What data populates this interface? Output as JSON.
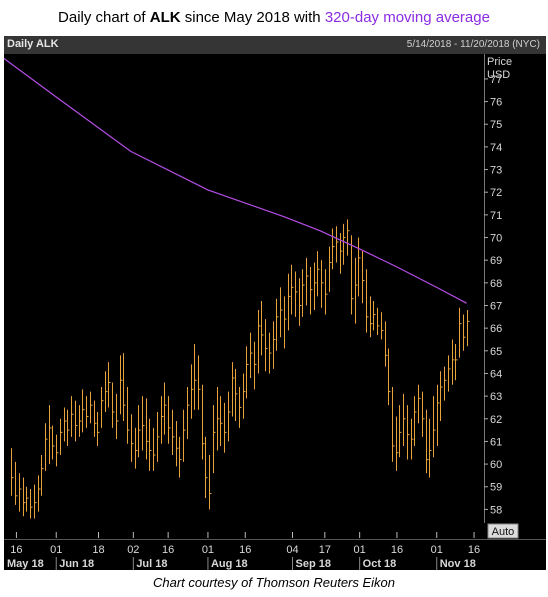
{
  "title": {
    "prefix": "Daily chart of ",
    "ticker": "ALK",
    "middle": " since May 2018 with ",
    "highlight": "320-day moving average"
  },
  "header": {
    "name": "Daily ALK",
    "range": "5/14/2018 - 11/20/2018 (NYC)"
  },
  "caption": "Chart courtesy of Thomson Reuters Eikon",
  "colors": {
    "price": "#e8a23c",
    "ma": "#b54ee6",
    "bg": "#000000",
    "axis": "#d8d8d8",
    "title_highlight": "#8b2be2"
  },
  "chart_data": {
    "type": "ohlc",
    "ylabel_lines": [
      "Price",
      "USD"
    ],
    "ylim": [
      57.4,
      78.1
    ],
    "yticks": [
      58,
      59,
      60,
      61,
      62,
      63,
      64,
      65,
      66,
      67,
      68,
      69,
      70,
      71,
      72,
      73,
      74,
      75,
      76,
      77
    ],
    "x_domain": [
      "2018-05-11",
      "2018-11-20"
    ],
    "xtick_days": [
      {
        "label": "16",
        "date": "2018-05-16"
      },
      {
        "label": "01",
        "date": "2018-06-01"
      },
      {
        "label": "18",
        "date": "2018-06-18"
      },
      {
        "label": "02",
        "date": "2018-07-02"
      },
      {
        "label": "16",
        "date": "2018-07-16"
      },
      {
        "label": "01",
        "date": "2018-08-01"
      },
      {
        "label": "16",
        "date": "2018-08-16"
      },
      {
        "label": "04",
        "date": "2018-09-04"
      },
      {
        "label": "17",
        "date": "2018-09-17"
      },
      {
        "label": "01",
        "date": "2018-10-01"
      },
      {
        "label": "16",
        "date": "2018-10-16"
      },
      {
        "label": "01",
        "date": "2018-11-01"
      },
      {
        "label": "16",
        "date": "2018-11-16"
      }
    ],
    "xtick_months": [
      {
        "label": "May 18",
        "date": "2018-05-11"
      },
      {
        "label": "Jun 18",
        "date": "2018-06-01"
      },
      {
        "label": "Jul 18",
        "date": "2018-07-02"
      },
      {
        "label": "Aug 18",
        "date": "2018-08-01"
      },
      {
        "label": "Sep 18",
        "date": "2018-09-04"
      },
      {
        "label": "Oct 18",
        "date": "2018-10-01"
      },
      {
        "label": "Nov 18",
        "date": "2018-11-01"
      }
    ],
    "auto_button": "Auto",
    "bar_dates": [
      "2018-05-14",
      "2018-11-13"
    ],
    "bars": [
      {
        "h": 60.7,
        "l": 58.6,
        "c": 59.4
      },
      {
        "h": 60.1,
        "l": 58.2,
        "c": 58.6
      },
      {
        "h": 59.6,
        "l": 57.9,
        "c": 58.9
      },
      {
        "h": 59.4,
        "l": 57.7,
        "c": 58.3
      },
      {
        "h": 59.0,
        "l": 57.9,
        "c": 58.5
      },
      {
        "h": 58.9,
        "l": 57.6,
        "c": 58.1
      },
      {
        "h": 59.1,
        "l": 57.6,
        "c": 58.3
      },
      {
        "h": 59.5,
        "l": 57.9,
        "c": 58.9
      },
      {
        "h": 60.4,
        "l": 58.6,
        "c": 59.8
      },
      {
        "h": 61.8,
        "l": 59.7,
        "c": 61.1
      },
      {
        "h": 62.6,
        "l": 60.0,
        "c": 61.6
      },
      {
        "h": 61.7,
        "l": 60.2,
        "c": 60.8
      },
      {
        "h": 61.3,
        "l": 59.9,
        "c": 60.5
      },
      {
        "h": 62.0,
        "l": 60.4,
        "c": 61.4
      },
      {
        "h": 62.5,
        "l": 61.0,
        "c": 61.9
      },
      {
        "h": 62.4,
        "l": 60.8,
        "c": 61.5
      },
      {
        "h": 63.0,
        "l": 61.2,
        "c": 62.2
      },
      {
        "h": 62.8,
        "l": 61.0,
        "c": 61.7
      },
      {
        "h": 62.6,
        "l": 61.2,
        "c": 61.9
      },
      {
        "h": 63.3,
        "l": 61.4,
        "c": 62.4
      },
      {
        "h": 63.0,
        "l": 61.6,
        "c": 62.1
      },
      {
        "h": 63.2,
        "l": 61.8,
        "c": 62.6
      },
      {
        "h": 62.8,
        "l": 61.2,
        "c": 61.8
      },
      {
        "h": 62.3,
        "l": 60.8,
        "c": 61.4
      },
      {
        "h": 63.4,
        "l": 61.6,
        "c": 62.8
      },
      {
        "h": 64.1,
        "l": 62.3,
        "c": 63.2
      },
      {
        "h": 64.5,
        "l": 62.5,
        "c": 63.6
      },
      {
        "h": 63.6,
        "l": 61.6,
        "c": 62.3
      },
      {
        "h": 63.1,
        "l": 61.1,
        "c": 61.9
      },
      {
        "h": 64.8,
        "l": 62.2,
        "c": 63.7
      },
      {
        "h": 64.9,
        "l": 61.9,
        "c": 62.6
      },
      {
        "h": 63.4,
        "l": 60.9,
        "c": 61.5
      },
      {
        "h": 62.2,
        "l": 60.1,
        "c": 60.9
      },
      {
        "h": 61.6,
        "l": 59.8,
        "c": 60.6
      },
      {
        "h": 62.6,
        "l": 60.3,
        "c": 61.5
      },
      {
        "h": 63.0,
        "l": 60.6,
        "c": 61.7
      },
      {
        "h": 62.9,
        "l": 60.2,
        "c": 61.0
      },
      {
        "h": 62.0,
        "l": 59.7,
        "c": 60.6
      },
      {
        "h": 61.6,
        "l": 59.7,
        "c": 60.4
      },
      {
        "h": 62.3,
        "l": 60.1,
        "c": 61.2
      },
      {
        "h": 63.0,
        "l": 60.9,
        "c": 62.1
      },
      {
        "h": 63.6,
        "l": 61.3,
        "c": 62.6
      },
      {
        "h": 63.0,
        "l": 60.9,
        "c": 61.6
      },
      {
        "h": 62.4,
        "l": 60.4,
        "c": 61.2
      },
      {
        "h": 61.9,
        "l": 59.9,
        "c": 60.7
      },
      {
        "h": 61.2,
        "l": 59.4,
        "c": 60.2
      },
      {
        "h": 62.4,
        "l": 60.1,
        "c": 61.5
      },
      {
        "h": 63.4,
        "l": 61.1,
        "c": 62.6
      },
      {
        "h": 64.4,
        "l": 62.0,
        "c": 63.3
      },
      {
        "h": 65.3,
        "l": 62.4,
        "c": 63.7
      },
      {
        "h": 64.8,
        "l": 62.4,
        "c": 63.3
      },
      {
        "h": 63.5,
        "l": 60.2,
        "c": 60.9
      },
      {
        "h": 61.2,
        "l": 58.5,
        "c": 59.4
      },
      {
        "h": 60.4,
        "l": 58.0,
        "c": 58.7
      },
      {
        "h": 62.6,
        "l": 59.6,
        "c": 61.4
      },
      {
        "h": 63.4,
        "l": 60.6,
        "c": 62.0
      },
      {
        "h": 63.0,
        "l": 60.8,
        "c": 61.8
      },
      {
        "h": 62.7,
        "l": 60.5,
        "c": 61.4
      },
      {
        "h": 63.2,
        "l": 61.0,
        "c": 62.3
      },
      {
        "h": 64.5,
        "l": 62.1,
        "c": 63.8
      },
      {
        "h": 64.2,
        "l": 61.9,
        "c": 63.1
      },
      {
        "h": 63.4,
        "l": 61.6,
        "c": 62.5
      },
      {
        "h": 64.0,
        "l": 62.0,
        "c": 63.2
      },
      {
        "h": 65.2,
        "l": 62.9,
        "c": 64.4
      },
      {
        "h": 65.8,
        "l": 63.8,
        "c": 64.9
      },
      {
        "h": 65.4,
        "l": 63.3,
        "c": 64.4
      },
      {
        "h": 66.8,
        "l": 64.0,
        "c": 66.1
      },
      {
        "h": 67.2,
        "l": 64.8,
        "c": 65.7
      },
      {
        "h": 66.4,
        "l": 64.1,
        "c": 65.1
      },
      {
        "h": 65.8,
        "l": 64.0,
        "c": 64.9
      },
      {
        "h": 66.3,
        "l": 64.2,
        "c": 65.5
      },
      {
        "h": 67.3,
        "l": 65.0,
        "c": 66.5
      },
      {
        "h": 67.8,
        "l": 65.6,
        "c": 66.8
      },
      {
        "h": 67.4,
        "l": 65.1,
        "c": 66.4
      },
      {
        "h": 68.4,
        "l": 65.9,
        "c": 67.4
      },
      {
        "h": 68.8,
        "l": 66.6,
        "c": 67.8
      },
      {
        "h": 68.5,
        "l": 66.5,
        "c": 67.6
      },
      {
        "h": 68.2,
        "l": 66.1,
        "c": 67.0
      },
      {
        "h": 68.6,
        "l": 66.5,
        "c": 67.9
      },
      {
        "h": 69.1,
        "l": 67.0,
        "c": 68.3
      },
      {
        "h": 68.7,
        "l": 66.6,
        "c": 67.7
      },
      {
        "h": 68.9,
        "l": 66.8,
        "c": 68.0
      },
      {
        "h": 69.4,
        "l": 67.4,
        "c": 68.6
      },
      {
        "h": 69.0,
        "l": 66.9,
        "c": 68.0
      },
      {
        "h": 68.6,
        "l": 66.6,
        "c": 67.5
      },
      {
        "h": 69.6,
        "l": 67.6,
        "c": 68.9
      },
      {
        "h": 70.4,
        "l": 68.6,
        "c": 69.6
      },
      {
        "h": 70.5,
        "l": 68.9,
        "c": 69.8
      },
      {
        "h": 70.2,
        "l": 68.4,
        "c": 69.4
      },
      {
        "h": 70.6,
        "l": 68.8,
        "c": 70.0
      },
      {
        "h": 70.8,
        "l": 69.2,
        "c": 70.3
      },
      {
        "h": 70.1,
        "l": 66.6,
        "c": 67.3
      },
      {
        "h": 69.1,
        "l": 66.2,
        "c": 67.9
      },
      {
        "h": 70.0,
        "l": 67.4,
        "c": 69.1
      },
      {
        "h": 69.4,
        "l": 67.1,
        "c": 68.1
      },
      {
        "h": 68.6,
        "l": 65.8,
        "c": 66.5
      },
      {
        "h": 67.4,
        "l": 65.6,
        "c": 66.2
      },
      {
        "h": 67.2,
        "l": 65.9,
        "c": 66.6
      },
      {
        "h": 66.9,
        "l": 65.7,
        "c": 66.1
      },
      {
        "h": 66.7,
        "l": 65.5,
        "c": 65.9
      },
      {
        "h": 66.3,
        "l": 64.3,
        "c": 64.8
      },
      {
        "h": 65.1,
        "l": 62.6,
        "c": 63.2
      },
      {
        "h": 63.4,
        "l": 60.1,
        "c": 60.8
      },
      {
        "h": 62.1,
        "l": 59.7,
        "c": 60.5
      },
      {
        "h": 62.6,
        "l": 60.3,
        "c": 61.4
      },
      {
        "h": 63.1,
        "l": 60.8,
        "c": 62.0
      },
      {
        "h": 62.6,
        "l": 60.2,
        "c": 61.3
      },
      {
        "h": 62.0,
        "l": 60.2,
        "c": 61.1
      },
      {
        "h": 63.0,
        "l": 60.8,
        "c": 62.3
      },
      {
        "h": 63.5,
        "l": 61.8,
        "c": 62.9
      },
      {
        "h": 63.2,
        "l": 61.2,
        "c": 62.0
      },
      {
        "h": 62.4,
        "l": 59.6,
        "c": 60.2
      },
      {
        "h": 62.0,
        "l": 59.4,
        "c": 60.6
      },
      {
        "h": 63.0,
        "l": 60.3,
        "c": 61.5
      },
      {
        "h": 63.5,
        "l": 60.8,
        "c": 62.7
      },
      {
        "h": 64.1,
        "l": 61.9,
        "c": 63.4
      },
      {
        "h": 64.3,
        "l": 62.8,
        "c": 63.7
      },
      {
        "h": 64.8,
        "l": 63.2,
        "c": 64.2
      },
      {
        "h": 65.5,
        "l": 63.5,
        "c": 64.6
      },
      {
        "h": 65.3,
        "l": 63.7,
        "c": 64.6
      },
      {
        "h": 66.9,
        "l": 64.7,
        "c": 66.2
      },
      {
        "h": 66.6,
        "l": 65.0,
        "c": 65.6
      },
      {
        "h": 66.8,
        "l": 65.2,
        "c": 66.3
      }
    ],
    "ma_series": {
      "name": "320-day moving average",
      "dates": [
        "2018-05-11",
        "2018-06-01",
        "2018-07-01",
        "2018-08-01",
        "2018-09-01",
        "2018-09-15",
        "2018-10-01",
        "2018-10-16",
        "2018-11-01",
        "2018-11-13"
      ],
      "values": [
        77.9,
        76.2,
        73.8,
        72.1,
        70.9,
        70.3,
        69.5,
        68.7,
        67.8,
        67.1
      ]
    }
  }
}
